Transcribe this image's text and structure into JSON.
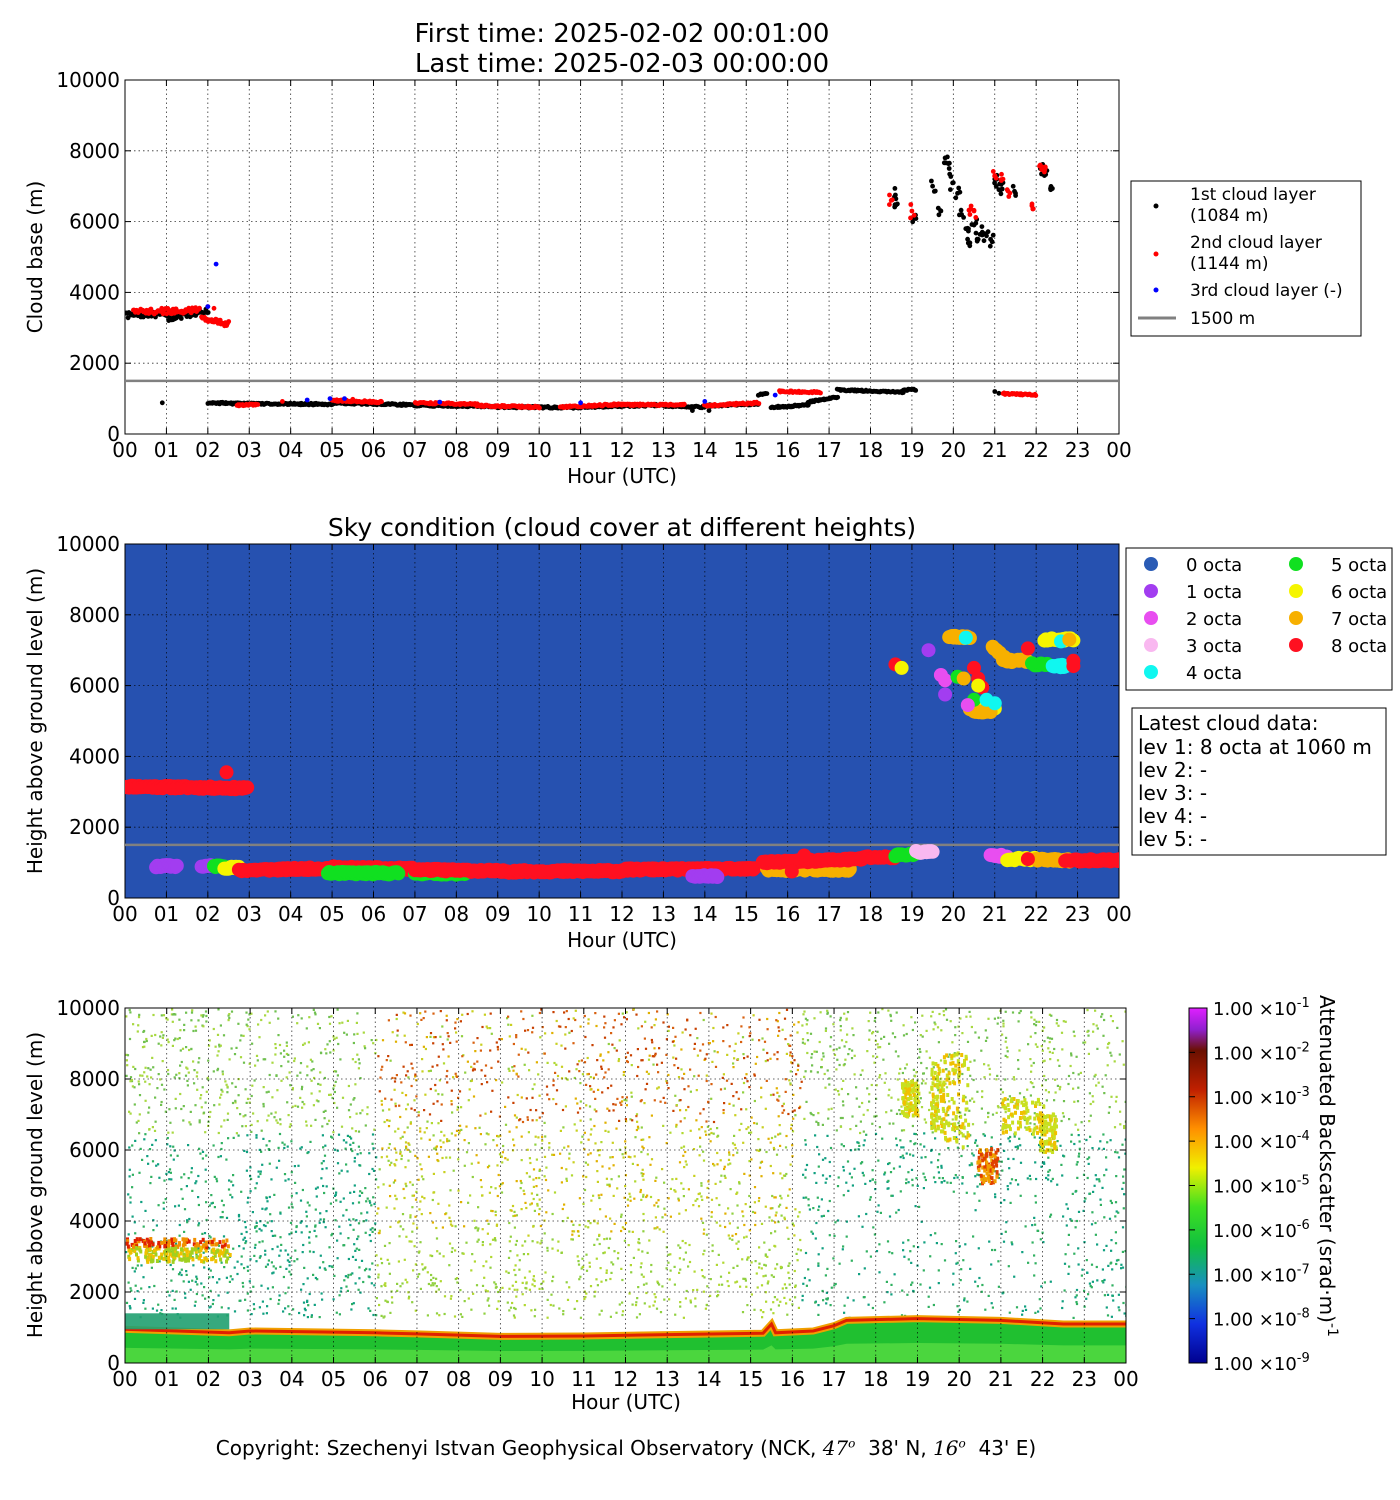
{
  "header": {
    "line1": "First time: 2025-02-02 00:01:00",
    "line2": "Last time: 2025-02-03 00:00:00"
  },
  "footer": {
    "pre": "Copyright: Szechenyi Istvan Geophysical Observatory (NCK, ",
    "lat_deg": "47",
    "lat_sup": "o",
    "lat_rest": "  38' N, ",
    "lon_deg": "16",
    "lon_sup": "o",
    "lon_rest": "  43' E)"
  },
  "colors": {
    "first_layer": "#000000",
    "second_layer": "#ff0000",
    "third_layer": "#0000ff",
    "reference_line": "#808080",
    "sky_background": "#2651b0",
    "octa": [
      "#2a5bb5",
      "#a23df0",
      "#e84ef0",
      "#f9b8f0",
      "#10f7f0",
      "#10e020",
      "#f5f500",
      "#f7b000",
      "#ff1020"
    ]
  },
  "chart_data": [
    {
      "id": "cloud-base",
      "type": "scatter",
      "title": "",
      "xlabel": "Hour (UTC)",
      "ylabel": "Cloud base (m)",
      "xlim": [
        0,
        24
      ],
      "ylim": [
        0,
        10000
      ],
      "yticks": [
        0,
        2000,
        4000,
        6000,
        8000,
        10000
      ],
      "xtick_labels": [
        "00",
        "01",
        "02",
        "03",
        "04",
        "05",
        "06",
        "07",
        "08",
        "09",
        "10",
        "11",
        "12",
        "13",
        "14",
        "15",
        "16",
        "17",
        "18",
        "19",
        "20",
        "21",
        "22",
        "23",
        "00"
      ],
      "grid": true,
      "legend_position": "outside-right",
      "reference_line": {
        "y": 1500,
        "label": "1500 m"
      },
      "series": [
        {
          "name": "1st cloud layer\n(1084 m)",
          "color": "#000000",
          "segments": [
            [
              0.0,
              3350,
              1.05,
              3400
            ],
            [
              1.05,
              3250,
              2.0,
              3500
            ],
            [
              2.0,
              880,
              2.7,
              860
            ],
            [
              2.7,
              860,
              5.0,
              840
            ],
            [
              5.0,
              880,
              7.0,
              820
            ],
            [
              7.0,
              810,
              9.0,
              780
            ],
            [
              9.0,
              760,
              11.0,
              750
            ],
            [
              11.0,
              760,
              13.0,
              820
            ],
            [
              13.0,
              800,
              14.0,
              760
            ],
            [
              14.0,
              800,
              15.3,
              840
            ],
            [
              15.3,
              1100,
              15.5,
              1150
            ],
            [
              15.6,
              750,
              16.5,
              820
            ],
            [
              16.5,
              900,
              17.2,
              1050
            ],
            [
              17.2,
              1250,
              18.8,
              1180
            ],
            [
              18.8,
              1250,
              19.1,
              1250
            ]
          ],
          "points": [
            [
              0.9,
              880
            ],
            [
              13.7,
              660
            ],
            [
              14.1,
              660
            ],
            [
              16.5,
              850
            ],
            [
              18.6,
              6750
            ],
            [
              18.65,
              6500
            ],
            [
              19.05,
              6100
            ],
            [
              19.5,
              7000
            ],
            [
              19.7,
              6300
            ],
            [
              19.8,
              7800
            ],
            [
              19.9,
              7500
            ],
            [
              20.0,
              7100
            ],
            [
              20.1,
              6800
            ],
            [
              20.2,
              6200
            ],
            [
              20.3,
              5800
            ],
            [
              20.4,
              5400
            ],
            [
              20.5,
              5900
            ],
            [
              20.6,
              5500
            ],
            [
              20.7,
              5700
            ],
            [
              20.8,
              5600
            ],
            [
              20.9,
              5500
            ],
            [
              21.0,
              7200
            ],
            [
              21.1,
              6900
            ],
            [
              21.2,
              7100
            ],
            [
              21.5,
              6800
            ],
            [
              22.1,
              7500
            ],
            [
              22.2,
              7300
            ],
            [
              22.35,
              6900
            ],
            [
              21.0,
              1200
            ],
            [
              21.1,
              1150
            ]
          ]
        },
        {
          "name": "2nd cloud layer\n(1144 m)",
          "color": "#ff0000",
          "segments": [
            [
              0.2,
              3450,
              1.8,
              3500
            ],
            [
              1.85,
              3300,
              2.5,
              3100
            ],
            [
              2.7,
              800,
              3.2,
              840
            ],
            [
              5.0,
              950,
              6.2,
              900
            ],
            [
              7.0,
              880,
              8.5,
              840
            ],
            [
              8.5,
              800,
              10.0,
              760
            ],
            [
              10.5,
              760,
              12.0,
              840
            ],
            [
              12.0,
              830,
              13.5,
              820
            ],
            [
              14.0,
              800,
              15.3,
              880
            ],
            [
              15.8,
              1200,
              16.8,
              1180
            ],
            [
              21.2,
              1140,
              22.0,
              1100
            ]
          ],
          "points": [
            [
              1.1,
              3400
            ],
            [
              1.7,
              3500
            ],
            [
              2.0,
              3600
            ],
            [
              2.15,
              3550
            ],
            [
              2.4,
              3100
            ],
            [
              3.8,
              920
            ],
            [
              5.5,
              980
            ],
            [
              7.5,
              890
            ],
            [
              11.2,
              820
            ],
            [
              18.5,
              6600
            ],
            [
              19.0,
              6300
            ],
            [
              20.4,
              6200
            ],
            [
              20.5,
              6300
            ],
            [
              21.0,
              7300
            ],
            [
              21.2,
              7200
            ],
            [
              21.3,
              6900
            ],
            [
              21.9,
              6500
            ],
            [
              22.1,
              7600
            ],
            [
              22.2,
              7400
            ]
          ]
        },
        {
          "name": "3rd cloud layer (-)",
          "color": "#0000ff",
          "points": [
            [
              2.0,
              3600
            ],
            [
              2.2,
              4800
            ],
            [
              4.4,
              960
            ],
            [
              4.95,
              1000
            ],
            [
              5.3,
              1000
            ],
            [
              7.6,
              900
            ],
            [
              11.0,
              880
            ],
            [
              14.0,
              920
            ],
            [
              15.7,
              1100
            ]
          ]
        }
      ]
    },
    {
      "id": "sky-condition",
      "type": "scatter",
      "title": "Sky condition (cloud cover at different heights)",
      "xlabel": "Hour (UTC)",
      "ylabel": "Height above ground level (m)",
      "xlim": [
        0,
        24
      ],
      "ylim": [
        0,
        10000
      ],
      "yticks": [
        0,
        2000,
        4000,
        6000,
        8000,
        10000
      ],
      "xtick_labels": [
        "00",
        "01",
        "02",
        "03",
        "04",
        "05",
        "06",
        "07",
        "08",
        "09",
        "10",
        "11",
        "12",
        "13",
        "14",
        "15",
        "16",
        "17",
        "18",
        "19",
        "20",
        "21",
        "22",
        "23",
        "00"
      ],
      "grid": true,
      "legend_position": "outside-right",
      "reference_line": {
        "y": 1500
      },
      "legend": [
        "0 octa",
        "1 octa",
        "2 octa",
        "3 octa",
        "4 octa",
        "5 octa",
        "6 octa",
        "7 octa",
        "8 octa"
      ],
      "segments": [
        {
          "octa": 8,
          "pts": [
            0.0,
            3150,
            2.9,
            3100
          ]
        },
        {
          "octa": 8,
          "pts": [
            2.9,
            3100,
            2.95,
            3100
          ]
        },
        {
          "octa": 1,
          "pts": [
            0.75,
            900,
            1.25,
            900
          ]
        },
        {
          "octa": 1,
          "pts": [
            1.85,
            900,
            2.1,
            900
          ]
        },
        {
          "octa": 5,
          "pts": [
            2.15,
            900,
            2.4,
            900
          ]
        },
        {
          "octa": 6,
          "pts": [
            2.4,
            860,
            2.75,
            850
          ]
        },
        {
          "octa": 8,
          "pts": [
            2.75,
            780,
            5.0,
            840
          ]
        },
        {
          "octa": 8,
          "pts": [
            5.0,
            860,
            7.0,
            820
          ]
        },
        {
          "octa": 5,
          "pts": [
            4.9,
            700,
            6.6,
            700
          ]
        },
        {
          "octa": 5,
          "pts": [
            7.0,
            700,
            8.2,
            690
          ]
        },
        {
          "octa": 8,
          "pts": [
            7.0,
            800,
            9.0,
            760
          ]
        },
        {
          "octa": 8,
          "pts": [
            9.0,
            750,
            12.0,
            760
          ]
        },
        {
          "octa": 8,
          "pts": [
            12.0,
            800,
            15.2,
            820
          ]
        },
        {
          "octa": 1,
          "pts": [
            13.7,
            620,
            14.3,
            620
          ]
        },
        {
          "octa": 7,
          "pts": [
            15.5,
            800,
            17.5,
            800
          ]
        },
        {
          "octa": 8,
          "pts": [
            15.4,
            1000,
            17.8,
            1100
          ]
        },
        {
          "octa": 8,
          "pts": [
            17.8,
            1150,
            18.6,
            1150
          ]
        },
        {
          "octa": 5,
          "pts": [
            18.6,
            1200,
            19.1,
            1250
          ]
        },
        {
          "octa": 3,
          "pts": [
            19.1,
            1300,
            19.5,
            1300
          ]
        },
        {
          "octa": 2,
          "pts": [
            20.9,
            1200,
            21.3,
            1180
          ]
        },
        {
          "octa": 6,
          "pts": [
            21.3,
            1100,
            22.0,
            1100
          ]
        },
        {
          "octa": 7,
          "pts": [
            22.0,
            1080,
            22.8,
            1060
          ]
        },
        {
          "octa": 8,
          "pts": [
            22.7,
            1060,
            24.0,
            1070
          ]
        },
        {
          "octa": 6,
          "pts": [
            20.4,
            5350,
            21.0,
            5350
          ]
        },
        {
          "octa": 7,
          "pts": [
            20.4,
            5300,
            20.9,
            5250
          ]
        },
        {
          "octa": 7,
          "pts": [
            20.95,
            7100,
            21.3,
            6700
          ]
        },
        {
          "octa": 7,
          "pts": [
            21.2,
            6700,
            21.8,
            6700
          ]
        },
        {
          "octa": 5,
          "pts": [
            21.9,
            6600,
            22.3,
            6600
          ]
        },
        {
          "octa": 6,
          "pts": [
            22.2,
            7300,
            22.9,
            7300
          ]
        },
        {
          "octa": 4,
          "pts": [
            22.4,
            6550,
            22.7,
            6550
          ]
        },
        {
          "octa": 7,
          "pts": [
            19.9,
            7400,
            20.4,
            7350
          ]
        }
      ],
      "points": [
        {
          "x": 2.45,
          "y": 3550,
          "octa": 8
        },
        {
          "x": 18.6,
          "y": 6600,
          "octa": 8
        },
        {
          "x": 18.75,
          "y": 6500,
          "octa": 6
        },
        {
          "x": 19.4,
          "y": 7000,
          "octa": 1
        },
        {
          "x": 19.7,
          "y": 6300,
          "octa": 2
        },
        {
          "x": 19.8,
          "y": 5750,
          "octa": 1
        },
        {
          "x": 19.8,
          "y": 6150,
          "octa": 2
        },
        {
          "x": 20.1,
          "y": 6250,
          "octa": 5
        },
        {
          "x": 20.25,
          "y": 6200,
          "octa": 7
        },
        {
          "x": 20.3,
          "y": 7350,
          "octa": 4
        },
        {
          "x": 20.5,
          "y": 6500,
          "octa": 8
        },
        {
          "x": 20.6,
          "y": 6200,
          "octa": 8
        },
        {
          "x": 20.7,
          "y": 5950,
          "octa": 8
        },
        {
          "x": 20.5,
          "y": 5600,
          "octa": 5
        },
        {
          "x": 20.8,
          "y": 5600,
          "octa": 4
        },
        {
          "x": 21.0,
          "y": 5500,
          "octa": 4
        },
        {
          "x": 20.35,
          "y": 5450,
          "octa": 2
        },
        {
          "x": 20.6,
          "y": 6000,
          "octa": 6
        },
        {
          "x": 21.8,
          "y": 7050,
          "octa": 8
        },
        {
          "x": 22.9,
          "y": 6700,
          "octa": 8
        },
        {
          "x": 22.9,
          "y": 6550,
          "octa": 8
        },
        {
          "x": 22.6,
          "y": 7250,
          "octa": 4
        },
        {
          "x": 22.8,
          "y": 7300,
          "octa": 7
        },
        {
          "x": 21.8,
          "y": 1100,
          "octa": 8
        },
        {
          "x": 16.1,
          "y": 750,
          "octa": 8
        },
        {
          "x": 16.4,
          "y": 1200,
          "octa": 8
        }
      ]
    },
    {
      "id": "backscatter",
      "type": "heatmap",
      "title": "",
      "xlabel": "Hour (UTC)",
      "ylabel": "Height above ground level (m)",
      "xlim": [
        0,
        24
      ],
      "ylim": [
        0,
        10000
      ],
      "yticks": [
        0,
        2000,
        4000,
        6000,
        8000,
        10000
      ],
      "xtick_labels": [
        "00",
        "01",
        "02",
        "03",
        "04",
        "05",
        "06",
        "07",
        "08",
        "09",
        "10",
        "11",
        "12",
        "13",
        "14",
        "15",
        "16",
        "17",
        "18",
        "19",
        "20",
        "21",
        "22",
        "23",
        "00"
      ],
      "grid": true,
      "colorbar": {
        "label": "Attenuated Backscatter (srad·m)",
        "label_exponent": "-1",
        "scale": "log",
        "ticks_mantissa": "1.00",
        "ticks_exponent": [
          "-1",
          "-2",
          "-3",
          "-4",
          "-5",
          "-6",
          "-7",
          "-8",
          "-9"
        ]
      },
      "features": [
        {
          "kind": "cloud_base_line",
          "points": [
            [
              0,
              950
            ],
            [
              2.5,
              850
            ],
            [
              3.0,
              900
            ],
            [
              6.0,
              850
            ],
            [
              7.0,
              820
            ],
            [
              9.0,
              750
            ],
            [
              11.0,
              760
            ],
            [
              13.0,
              800
            ],
            [
              15.3,
              840
            ],
            [
              15.5,
              1100
            ],
            [
              15.6,
              850
            ],
            [
              16.5,
              900
            ],
            [
              17.0,
              1050
            ],
            [
              17.3,
              1200
            ],
            [
              19.0,
              1250
            ],
            [
              21.0,
              1200
            ],
            [
              22.5,
              1100
            ],
            [
              24.0,
              1100
            ]
          ]
        },
        {
          "kind": "cloud_layer",
          "x": [
            0.0,
            2.5
          ],
          "y": [
            2900,
            3550
          ],
          "intensity": "1e-4"
        },
        {
          "kind": "cloud_layer",
          "x": [
            18.5,
            22.3
          ],
          "y": [
            5200,
            8800
          ],
          "intensity": "1e-5"
        },
        {
          "kind": "cloud_layer",
          "x": [
            20.4,
            20.9
          ],
          "y": [
            5100,
            6100
          ],
          "intensity": "1e-4"
        }
      ]
    }
  ]
}
